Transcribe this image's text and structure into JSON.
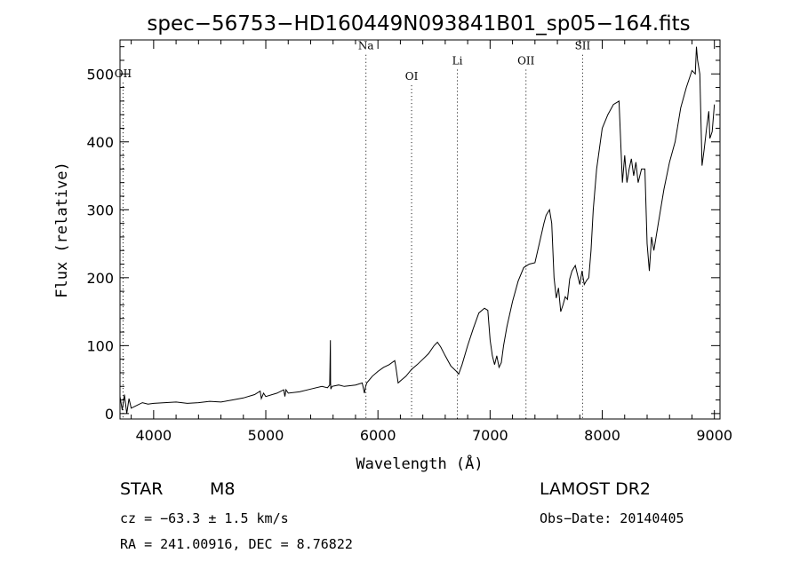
{
  "chart_data": {
    "type": "line",
    "title": "spec−56753−HD160449N093841B01_sp05−164.fits",
    "xlabel": "Wavelength (Å)",
    "ylabel": "Flux (relative)",
    "xlim": [
      3700,
      9050
    ],
    "ylim": [
      -8,
      550
    ],
    "xticks": [
      {
        "value": 4000,
        "label": "4000"
      },
      {
        "value": 5000,
        "label": "5000"
      },
      {
        "value": 6000,
        "label": "6000"
      },
      {
        "value": 7000,
        "label": "7000"
      },
      {
        "value": 8000,
        "label": "8000"
      },
      {
        "value": 9000,
        "label": "9000"
      }
    ],
    "yticks": [
      {
        "value": 0,
        "label": "0"
      },
      {
        "value": 100,
        "label": "100"
      },
      {
        "value": 200,
        "label": "200"
      },
      {
        "value": 300,
        "label": "300"
      },
      {
        "value": 400,
        "label": "400"
      },
      {
        "value": 500,
        "label": "500"
      }
    ],
    "grid": false,
    "lines": [
      {
        "label": "OII",
        "x": 3727,
        "label_y": 495
      },
      {
        "label": "Na",
        "x": 5893,
        "label_y": 536
      },
      {
        "label": "OI",
        "x": 6300,
        "label_y": 491
      },
      {
        "label": "Li",
        "x": 6708,
        "label_y": 514
      },
      {
        "label": "OII",
        "x": 7320,
        "label_y": 514
      },
      {
        "label": "SII",
        "x": 7825,
        "label_y": 536
      }
    ],
    "series": [
      {
        "x": [
          3700,
          3720,
          3740,
          3760,
          3780,
          3800,
          3850,
          3900,
          3950,
          4000,
          4100,
          4200,
          4300,
          4400,
          4500,
          4600,
          4700,
          4800,
          4900,
          4950,
          4960,
          4980,
          5000,
          5100,
          5160,
          5170,
          5180,
          5200,
          5300,
          5400,
          5500,
          5550,
          5570,
          5576,
          5578,
          5580,
          5590,
          5650,
          5700,
          5800,
          5860,
          5880,
          5890,
          5900,
          5950,
          6000,
          6050,
          6100,
          6150,
          6160,
          6180,
          6200,
          6250,
          6300,
          6350,
          6400,
          6450,
          6500,
          6530,
          6560,
          6600,
          6650,
          6700,
          6720,
          6750,
          6800,
          6850,
          6900,
          6950,
          6980,
          7000,
          7020,
          7040,
          7060,
          7080,
          7100,
          7120,
          7150,
          7200,
          7250,
          7300,
          7350,
          7400,
          7450,
          7480,
          7500,
          7530,
          7550,
          7570,
          7590,
          7610,
          7630,
          7650,
          7670,
          7690,
          7710,
          7730,
          7760,
          7800,
          7820,
          7840,
          7860,
          7880,
          7900,
          7920,
          7950,
          8000,
          8050,
          8100,
          8150,
          8180,
          8190,
          8200,
          8220,
          8240,
          8260,
          8280,
          8300,
          8320,
          8350,
          8380,
          8400,
          8420,
          8440,
          8460,
          8480,
          8500,
          8550,
          8600,
          8650,
          8700,
          8750,
          8800,
          8830,
          8840,
          8850,
          8870,
          8890,
          8910,
          8930,
          8950,
          8960,
          8980,
          9000
        ],
        "y": [
          25,
          5,
          28,
          0,
          22,
          8,
          12,
          16,
          14,
          15,
          16,
          17,
          15,
          16,
          18,
          17,
          20,
          23,
          28,
          33,
          22,
          30,
          25,
          30,
          35,
          25,
          35,
          30,
          32,
          36,
          40,
          38,
          42,
          108,
          45,
          36,
          40,
          42,
          40,
          42,
          45,
          30,
          40,
          45,
          55,
          62,
          68,
          72,
          78,
          68,
          45,
          48,
          55,
          65,
          72,
          80,
          88,
          100,
          105,
          98,
          85,
          70,
          62,
          58,
          72,
          100,
          125,
          148,
          155,
          152,
          108,
          85,
          72,
          85,
          68,
          75,
          100,
          128,
          165,
          195,
          215,
          220,
          222,
          258,
          280,
          292,
          300,
          280,
          200,
          170,
          185,
          150,
          160,
          172,
          168,
          198,
          210,
          218,
          190,
          210,
          190,
          196,
          200,
          240,
          300,
          360,
          420,
          440,
          455,
          460,
          340,
          360,
          380,
          340,
          360,
          375,
          350,
          370,
          340,
          360,
          360,
          250,
          210,
          260,
          240,
          260,
          280,
          330,
          370,
          400,
          450,
          480,
          505,
          500,
          540,
          520,
          500,
          365,
          390,
          420,
          445,
          405,
          415,
          455
        ]
      }
    ]
  },
  "info": {
    "object_class": "STAR",
    "subclass": "M8",
    "survey": "LAMOST DR2",
    "redshift": "cz = −63.3 ± 1.5 km/s",
    "obs_date": "Obs−Date: 20140405",
    "coords": "RA = 241.00916, DEC =   8.76822"
  }
}
